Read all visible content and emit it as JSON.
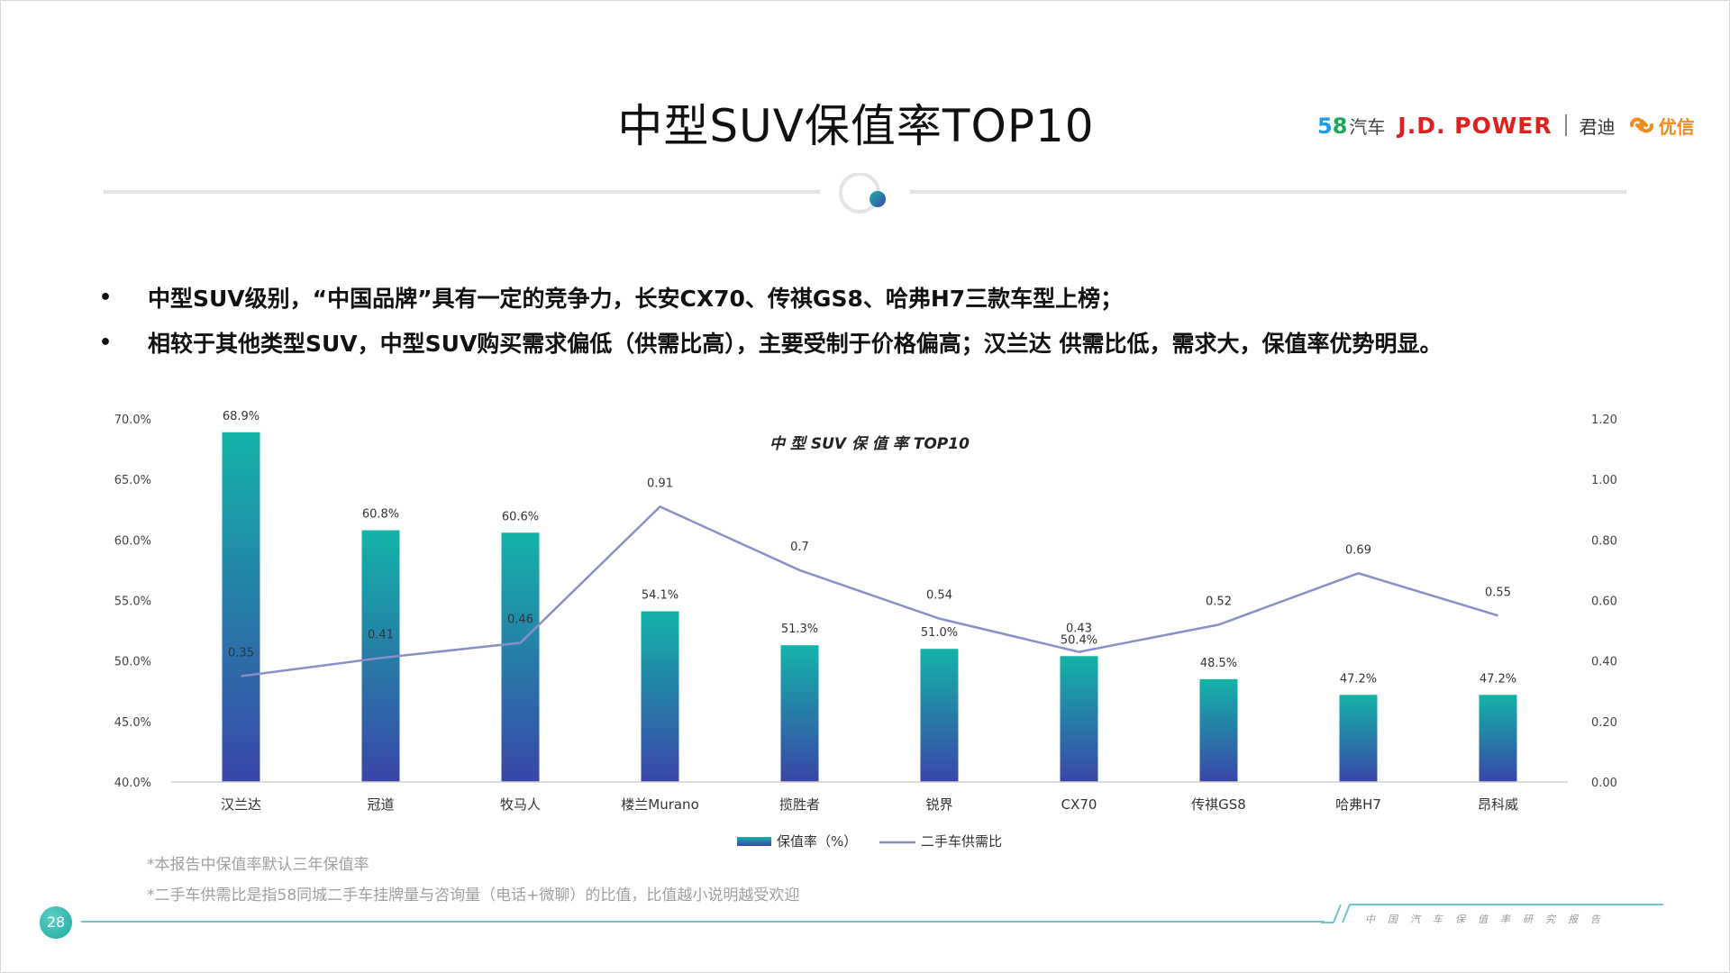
{
  "slide": {
    "title": "中型SUV保值率TOP10",
    "page_number": "28",
    "footer_tag": "中国汽车保值率研究报告"
  },
  "logos": {
    "fiveeight_number_5": "5",
    "fiveeight_number_8": "8",
    "fiveeight_text": "汽车",
    "jdpower": "J.D. POWER",
    "jundi": "君迪",
    "youxin": "优信"
  },
  "bullets": [
    "中型SUV级别，“中国品牌”具有一定的竞争力，长安CX70、传祺GS8、哈弗H7三款车型上榜；",
    "相较于其他类型SUV，中型SUV购买需求偏低（供需比高），主要受制于价格偏高；汉兰达 供需比低，需求大，保值率优势明显。"
  ],
  "notes": [
    "*本报告中保值率默认三年保值率",
    "*二手车供需比是指58同城二手车挂牌量与咨询量（电话+微聊）的比值，比值越小说明越受欢迎"
  ],
  "colors": {
    "bar_top": "#13b3a8",
    "bar_bottom": "#3a46a8",
    "line": "#8a8fc8",
    "accent_teal": "#6fc8c8"
  },
  "chart_data": {
    "type": "bar",
    "title": "中 型 SUV 保 值 率 TOP10",
    "categories": [
      "汉兰达",
      "冠道",
      "牧马人",
      "楼兰Murano",
      "揽胜者",
      "锐界",
      "CX70",
      "传祺GS8",
      "哈弗H7",
      "昂科威"
    ],
    "series": [
      {
        "name": "保值率（%）",
        "type": "bar",
        "axis": "left",
        "values": [
          68.9,
          60.8,
          60.6,
          54.1,
          51.3,
          51.0,
          50.4,
          48.5,
          47.2,
          47.2
        ],
        "labels": [
          "68.9%",
          "60.8%",
          "60.6%",
          "54.1%",
          "51.3%",
          "51.0%",
          "50.4%",
          "48.5%",
          "47.2%",
          "47.2%"
        ]
      },
      {
        "name": "二手车供需比",
        "type": "line",
        "axis": "right",
        "values": [
          0.35,
          0.41,
          0.46,
          0.91,
          0.7,
          0.54,
          0.43,
          0.52,
          0.69,
          0.55
        ],
        "labels": [
          "0.35",
          "0.41",
          "0.46",
          "0.91",
          "0.7",
          "0.54",
          "0.43",
          "0.52",
          "0.69",
          "0.55"
        ]
      }
    ],
    "y_left": {
      "lim": [
        40,
        70
      ],
      "ticks": [
        40,
        45,
        50,
        55,
        60,
        65,
        70
      ],
      "tick_labels": [
        "40.0%",
        "45.0%",
        "50.0%",
        "55.0%",
        "60.0%",
        "65.0%",
        "70.0%"
      ]
    },
    "y_right": {
      "lim": [
        0,
        1.2
      ],
      "ticks": [
        0,
        0.2,
        0.4,
        0.6,
        0.8,
        1.0,
        1.2
      ],
      "tick_labels": [
        "0.00",
        "0.20",
        "0.40",
        "0.60",
        "0.80",
        "1.00",
        "1.20"
      ]
    },
    "grid": false,
    "legend_position": "bottom"
  }
}
